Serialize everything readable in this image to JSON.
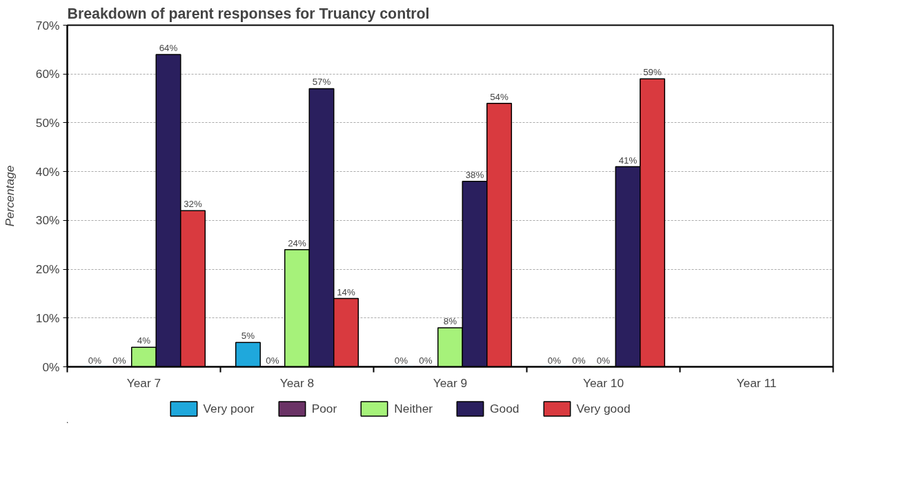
{
  "chart_data": {
    "type": "bar",
    "title": "Breakdown of parent responses for Truancy control",
    "ylabel": "Percentage",
    "categories": [
      "Year 7",
      "Year 8",
      "Year 9",
      "Year 10",
      "Year 11"
    ],
    "series": [
      {
        "name": "Very poor",
        "color": "#1fa8dc",
        "values": [
          0,
          5,
          0,
          0,
          null
        ],
        "value_labels": [
          "0%",
          "5%",
          "0%",
          "0%",
          null
        ]
      },
      {
        "name": "Poor",
        "color": "#6b3366",
        "values": [
          0,
          0,
          0,
          0,
          null
        ],
        "value_labels": [
          "0%",
          "0%",
          "0%",
          "0%",
          null
        ]
      },
      {
        "name": "Neither",
        "color": "#a6f27a",
        "values": [
          4,
          24,
          8,
          0,
          null
        ],
        "value_labels": [
          "4%",
          "24%",
          "8%",
          "0%",
          null
        ]
      },
      {
        "name": "Good",
        "color": "#2a1f5e",
        "values": [
          64,
          57,
          38,
          41,
          null
        ],
        "value_labels": [
          "64%",
          "57%",
          "38%",
          "41%",
          null
        ]
      },
      {
        "name": "Very good",
        "color": "#d93a3f",
        "values": [
          32,
          14,
          54,
          59,
          null
        ],
        "value_labels": [
          "32%",
          "14%",
          "54%",
          "59%",
          null
        ]
      }
    ],
    "ylim": [
      0,
      70
    ],
    "yticks": [
      {
        "value": 0,
        "label": "0%"
      },
      {
        "value": 10,
        "label": "10%"
      },
      {
        "value": 20,
        "label": "20%"
      },
      {
        "value": 30,
        "label": "30%"
      },
      {
        "value": 40,
        "label": "40%"
      },
      {
        "value": 50,
        "label": "50%"
      },
      {
        "value": 60,
        "label": "60%"
      },
      {
        "value": 70,
        "label": "70%"
      }
    ],
    "grid": "y",
    "legend": "bottom"
  }
}
